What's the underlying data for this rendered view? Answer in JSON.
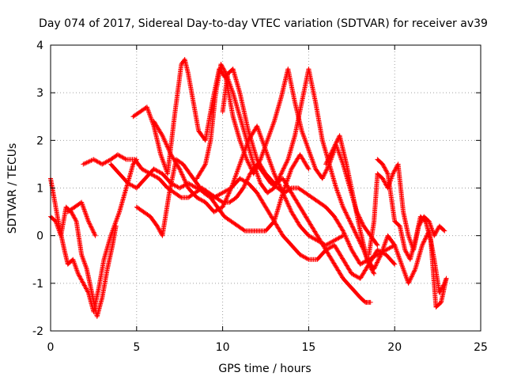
{
  "chart_data": {
    "type": "scatter",
    "title": "Day 074 of 2017, Sidereal Day-to-day VTEC variation (SDTVAR) for receiver av39",
    "xlabel": "GPS time / hours",
    "ylabel": "SDTVAR / TECUs",
    "xlim": [
      0,
      25
    ],
    "ylim": [
      -2,
      4
    ],
    "x_ticks": [
      "0",
      "5",
      "10",
      "15",
      "20",
      "25"
    ],
    "y_ticks": [
      "-2",
      "-1",
      "0",
      "1",
      "2",
      "3",
      "4"
    ],
    "grid": true,
    "marker": "+",
    "color": "#ff0000",
    "series": [
      {
        "x": [
          0.0,
          0.2,
          0.5,
          0.8,
          1.0,
          1.3,
          1.6,
          1.9,
          2.2,
          2.5,
          2.8,
          3.1,
          3.5,
          4.0,
          4.4,
          4.8,
          5.0
        ],
        "values": [
          1.2,
          0.8,
          0.2,
          -0.3,
          -0.6,
          -0.5,
          -0.8,
          -1.0,
          -1.2,
          -1.6,
          -1.1,
          -0.5,
          0.0,
          0.5,
          1.0,
          1.5,
          1.6
        ]
      },
      {
        "x": [
          0.0,
          0.3,
          0.6,
          0.9,
          1.2,
          1.5,
          1.8,
          2.1,
          2.4,
          2.7,
          3.0,
          3.3,
          3.6,
          3.8
        ],
        "values": [
          0.4,
          0.3,
          0.0,
          0.6,
          0.5,
          0.3,
          -0.4,
          -0.7,
          -1.2,
          -1.7,
          -1.3,
          -0.7,
          -0.2,
          0.2
        ]
      },
      {
        "x": [
          1.0,
          1.4,
          1.8,
          2.2,
          2.6
        ],
        "values": [
          0.5,
          0.6,
          0.7,
          0.3,
          0.0
        ]
      },
      {
        "x": [
          1.9,
          2.5,
          3.0,
          3.5,
          3.9,
          4.4,
          4.9,
          5.3,
          5.8,
          6.3,
          6.8,
          7.2,
          7.6,
          8.0,
          8.4,
          8.8,
          9.2,
          9.6,
          10.0,
          10.4,
          10.8,
          11.2,
          11.6,
          12.0,
          12.4,
          12.8,
          13.2,
          13.6,
          14.0,
          14.4,
          14.8,
          15.2,
          15.6,
          16.0,
          16.5,
          17.0,
          17.5,
          18.0,
          18.5,
          19.0,
          19.5,
          20.0
        ],
        "values": [
          1.5,
          1.6,
          1.5,
          1.6,
          1.7,
          1.6,
          1.6,
          1.4,
          1.3,
          1.2,
          1.0,
          0.9,
          0.8,
          0.8,
          0.9,
          1.0,
          0.9,
          0.8,
          0.7,
          0.7,
          0.8,
          1.0,
          1.3,
          1.5,
          1.3,
          1.1,
          1.0,
          0.9,
          1.0,
          1.0,
          0.9,
          0.8,
          0.7,
          0.6,
          0.4,
          0.1,
          -0.3,
          -0.6,
          -0.5,
          -0.4,
          -0.3,
          -0.2
        ]
      },
      {
        "x": [
          3.5,
          4.0,
          4.5,
          5.0,
          5.5,
          6.0,
          6.5,
          7.0,
          7.5,
          8.0,
          8.5,
          9.0,
          9.5,
          10.0,
          10.5,
          11.0,
          11.5,
          12.0,
          12.5,
          13.0,
          13.5,
          14.0,
          14.5,
          15.0,
          15.5,
          16.0,
          16.5,
          17.0,
          17.5,
          18.0,
          18.5,
          19.0,
          19.5,
          20.0
        ],
        "values": [
          1.5,
          1.3,
          1.1,
          1.0,
          1.2,
          1.4,
          1.3,
          1.1,
          1.0,
          1.1,
          1.0,
          0.9,
          0.8,
          0.9,
          1.0,
          1.2,
          1.1,
          0.9,
          0.6,
          0.3,
          0.0,
          -0.2,
          -0.4,
          -0.5,
          -0.5,
          -0.3,
          -0.2,
          -0.5,
          -0.8,
          -0.9,
          -0.6,
          -0.3,
          -0.4,
          -0.6
        ]
      },
      {
        "x": [
          4.8,
          5.2,
          5.6,
          6.0,
          6.4,
          6.8,
          7.2,
          7.6,
          7.8,
          8.0,
          8.3,
          8.6,
          9.0,
          9.4,
          9.8,
          10.2,
          10.6,
          11.0,
          11.4,
          11.8,
          12.2,
          12.6,
          13.0,
          13.4,
          13.8,
          14.2,
          14.6,
          15.0,
          15.4,
          15.8,
          16.2,
          16.6,
          17.0,
          17.4,
          17.8,
          18.2,
          18.6,
          19.0
        ],
        "values": [
          2.5,
          2.6,
          2.7,
          2.3,
          1.7,
          1.3,
          2.5,
          3.6,
          3.7,
          3.4,
          2.8,
          2.2,
          2.0,
          2.8,
          3.5,
          3.3,
          2.5,
          2.0,
          1.6,
          1.3,
          1.6,
          2.0,
          2.4,
          2.9,
          3.5,
          2.8,
          2.2,
          1.8,
          1.4,
          1.2,
          1.5,
          1.9,
          1.5,
          1.0,
          0.5,
          0.2,
          0.0,
          -0.2
        ]
      },
      {
        "x": [
          5.0,
          5.4,
          5.8,
          6.2,
          6.5,
          6.9,
          7.3,
          7.7,
          8.1,
          8.5,
          8.9,
          9.3,
          9.7,
          10.1,
          10.5,
          10.9,
          11.3,
          11.7,
          12.1,
          12.5,
          13.0,
          13.5,
          14.0,
          14.5,
          15.0
        ],
        "values": [
          0.6,
          0.5,
          0.4,
          0.2,
          0.0,
          0.9,
          1.6,
          1.5,
          1.3,
          1.1,
          0.9,
          0.8,
          0.6,
          0.4,
          0.3,
          0.2,
          0.1,
          0.1,
          0.1,
          0.1,
          0.3,
          0.9,
          1.4,
          1.7,
          1.4
        ]
      },
      {
        "x": [
          6.0,
          6.5,
          7.0,
          7.5,
          8.0,
          8.5,
          9.0,
          9.5,
          10.0,
          10.5,
          11.0,
          11.5,
          12.0,
          12.5,
          13.0,
          13.5,
          14.0,
          14.5,
          15.0,
          15.5,
          16.0,
          16.5,
          17.0
        ],
        "values": [
          2.4,
          2.1,
          1.7,
          1.4,
          1.0,
          0.8,
          0.7,
          0.5,
          0.6,
          1.0,
          1.5,
          2.0,
          2.3,
          1.8,
          1.3,
          0.9,
          0.5,
          0.2,
          0.0,
          -0.1,
          -0.2,
          -0.1,
          0.0
        ]
      },
      {
        "x": [
          8.5,
          9.0,
          9.3,
          9.6,
          9.9,
          10.2,
          10.6,
          11.0,
          11.4,
          11.8,
          12.2,
          12.6,
          13.0,
          13.4,
          13.8,
          14.2,
          14.6,
          15.0,
          15.4,
          15.8,
          16.2,
          16.6,
          17.0,
          17.4,
          17.8,
          18.2,
          18.5,
          18.8
        ],
        "values": [
          1.2,
          1.5,
          2.0,
          3.0,
          3.6,
          3.4,
          3.0,
          2.5,
          2.0,
          1.5,
          1.1,
          0.9,
          1.0,
          1.3,
          1.6,
          2.1,
          2.8,
          3.5,
          2.8,
          2.0,
          1.5,
          1.0,
          0.6,
          0.3,
          0.0,
          -0.3,
          -0.6,
          -0.8
        ]
      },
      {
        "x": [
          10.0,
          10.3,
          10.6,
          11.0,
          11.5,
          12.0,
          12.5,
          13.0,
          13.5,
          14.0,
          14.5,
          15.0,
          15.5,
          16.0,
          16.5,
          17.0,
          17.5,
          18.0,
          18.3,
          18.6
        ],
        "values": [
          2.6,
          3.4,
          3.5,
          3.0,
          2.2,
          1.6,
          1.3,
          1.1,
          1.2,
          0.9,
          0.6,
          0.3,
          0.0,
          -0.3,
          -0.6,
          -0.9,
          -1.1,
          -1.3,
          -1.4,
          -1.4
        ]
      },
      {
        "x": [
          16.0,
          16.4,
          16.8,
          17.2,
          17.6,
          18.0,
          18.4,
          18.8,
          19.2,
          19.6,
          20.0,
          20.4,
          20.8,
          21.2,
          21.6,
          22.0,
          22.3,
          22.6,
          22.9,
          23.0
        ],
        "values": [
          1.5,
          1.8,
          2.1,
          1.5,
          0.8,
          0.1,
          -0.5,
          -0.7,
          -0.4,
          0.0,
          -0.2,
          -0.6,
          -1.0,
          -0.7,
          -0.2,
          0.1,
          -0.5,
          -1.2,
          -1.0,
          -0.9
        ]
      },
      {
        "x": [
          18.5,
          18.8,
          19.0,
          19.3,
          19.6,
          19.9,
          20.2,
          20.5,
          20.8,
          21.1,
          21.4,
          21.7,
          22.0,
          22.3,
          22.6,
          22.9
        ],
        "values": [
          -0.4,
          0.3,
          1.3,
          1.2,
          1.0,
          1.3,
          1.5,
          0.5,
          0.0,
          -0.3,
          0.2,
          0.4,
          0.3,
          0.0,
          0.2,
          0.1
        ]
      },
      {
        "x": [
          19.0,
          19.3,
          19.6,
          20.0,
          20.3,
          20.6,
          20.9,
          21.2,
          21.5,
          21.8,
          22.1,
          22.4,
          22.7,
          23.0
        ],
        "values": [
          1.6,
          1.5,
          1.3,
          0.3,
          0.2,
          -0.3,
          -0.5,
          -0.1,
          0.4,
          0.3,
          -0.1,
          -1.5,
          -1.4,
          -0.9
        ]
      }
    ]
  }
}
